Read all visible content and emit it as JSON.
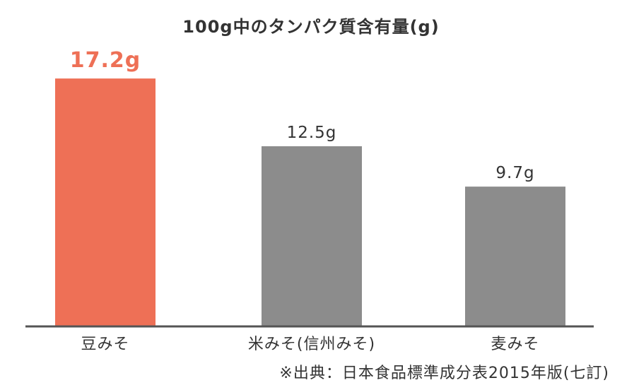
{
  "chart_data": {
    "type": "bar",
    "title": "100g中のタンパク質含有量(g)",
    "categories": [
      "豆みそ",
      "米みそ(信州みそ)",
      "麦みそ"
    ],
    "values": [
      17.2,
      12.5,
      9.7
    ],
    "value_labels": [
      "17.2g",
      "12.5g",
      "9.7g"
    ],
    "unit": "g",
    "ylim": [
      0,
      20
    ],
    "grid": false,
    "legend": "none",
    "highlight_index": 0,
    "colors": {
      "highlight": "#ee7056",
      "default": "#8c8c8c",
      "axis": "#555555",
      "text": "#333333"
    }
  },
  "footer": {
    "source": "※出典：日本食品標準成分表2015年版(七訂)"
  }
}
